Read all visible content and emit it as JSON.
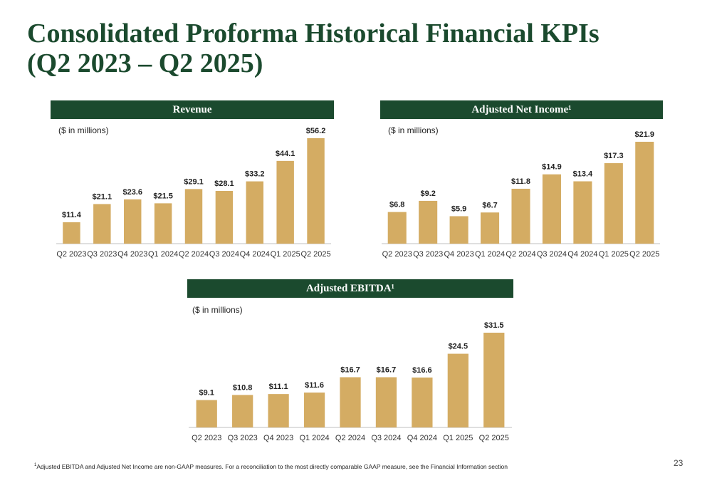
{
  "slide": {
    "title_line1": "Consolidated Proforma Historical Financial KPIs",
    "title_line2": "(Q2 2023 – Q2 2025)",
    "footnote_marker": "1",
    "footnote": "Adjusted EBITDA and Adjusted Net Income are non-GAAP measures. For a reconciliation to the most directly comparable GAAP measure, see the Financial Information section",
    "page_number": "23"
  },
  "colors": {
    "bar": "#d4ac63",
    "header": "#1b4a2e",
    "title": "#1b4a2e"
  },
  "chart_data": [
    {
      "type": "bar",
      "title": "Revenue",
      "units": "($ in millions)",
      "categories": [
        "Q2 2023",
        "Q3 2023",
        "Q4 2023",
        "Q1 2024",
        "Q2 2024",
        "Q3 2024",
        "Q4 2024",
        "Q1 2025",
        "Q2 2025"
      ],
      "values": [
        11.4,
        21.1,
        23.6,
        21.5,
        29.1,
        28.1,
        33.2,
        44.1,
        56.2
      ],
      "labels": [
        "$11.4",
        "$21.1",
        "$23.6",
        "$21.5",
        "$29.1",
        "$28.1",
        "$33.2",
        "$44.1",
        "$56.2"
      ],
      "ylim": [
        0,
        56.2
      ],
      "grid": false,
      "legend": "none"
    },
    {
      "type": "bar",
      "title": "Adjusted Net Income¹",
      "units": "($ in millions)",
      "categories": [
        "Q2 2023",
        "Q3 2023",
        "Q4 2023",
        "Q1 2024",
        "Q2 2024",
        "Q3 2024",
        "Q4 2024",
        "Q1 2025",
        "Q2 2025"
      ],
      "values": [
        6.8,
        9.2,
        5.9,
        6.7,
        11.8,
        14.9,
        13.4,
        17.3,
        21.9
      ],
      "labels": [
        "$6.8",
        "$9.2",
        "$5.9",
        "$6.7",
        "$11.8",
        "$14.9",
        "$13.4",
        "$17.3",
        "$21.9"
      ],
      "ylim": [
        0,
        21.9
      ],
      "grid": false,
      "legend": "none"
    },
    {
      "type": "bar",
      "title": "Adjusted EBITDA¹",
      "units": "($ in millions)",
      "categories": [
        "Q2 2023",
        "Q3 2023",
        "Q4 2023",
        "Q1 2024",
        "Q2 2024",
        "Q3 2024",
        "Q4 2024",
        "Q1 2025",
        "Q2 2025"
      ],
      "values": [
        9.1,
        10.8,
        11.1,
        11.6,
        16.7,
        16.7,
        16.6,
        24.5,
        31.5
      ],
      "labels": [
        "$9.1",
        "$10.8",
        "$11.1",
        "$11.6",
        "$16.7",
        "$16.7",
        "$16.6",
        "$24.5",
        "$31.5"
      ],
      "ylim": [
        0,
        31.5
      ],
      "grid": false,
      "legend": "none"
    }
  ]
}
